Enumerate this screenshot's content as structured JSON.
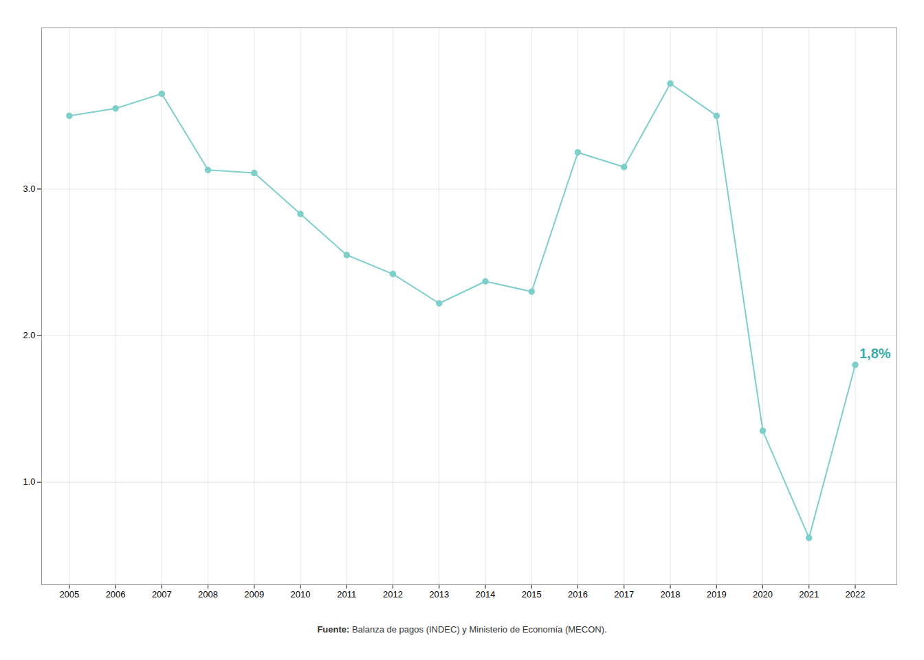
{
  "chart_data": {
    "type": "line",
    "x": [
      2005,
      2006,
      2007,
      2008,
      2009,
      2010,
      2011,
      2012,
      2013,
      2014,
      2015,
      2016,
      2017,
      2018,
      2019,
      2020,
      2021,
      2022
    ],
    "values": [
      3.5,
      3.55,
      3.65,
      3.13,
      3.11,
      2.83,
      2.55,
      2.42,
      2.22,
      2.37,
      2.3,
      3.25,
      3.15,
      3.72,
      3.5,
      1.35,
      0.62,
      1.8
    ],
    "color": "#7ececa",
    "marker": "circle",
    "xlim": [
      2004.4,
      2022.9
    ],
    "xticks": [
      2005,
      2006,
      2007,
      2008,
      2009,
      2010,
      2011,
      2012,
      2013,
      2014,
      2015,
      2016,
      2017,
      2018,
      2019,
      2020,
      2021,
      2022
    ],
    "ylim": [
      0.3,
      4.1
    ],
    "yticks": [
      1,
      2,
      3
    ],
    "grid": true,
    "annotations": [
      {
        "text": "1,8%",
        "x": 2022,
        "y": 1.8,
        "color": "#3aadaa"
      }
    ],
    "caption": "Fuente: Balanza de pagos (INDEC) y Ministerio de Economía (MECON)."
  }
}
